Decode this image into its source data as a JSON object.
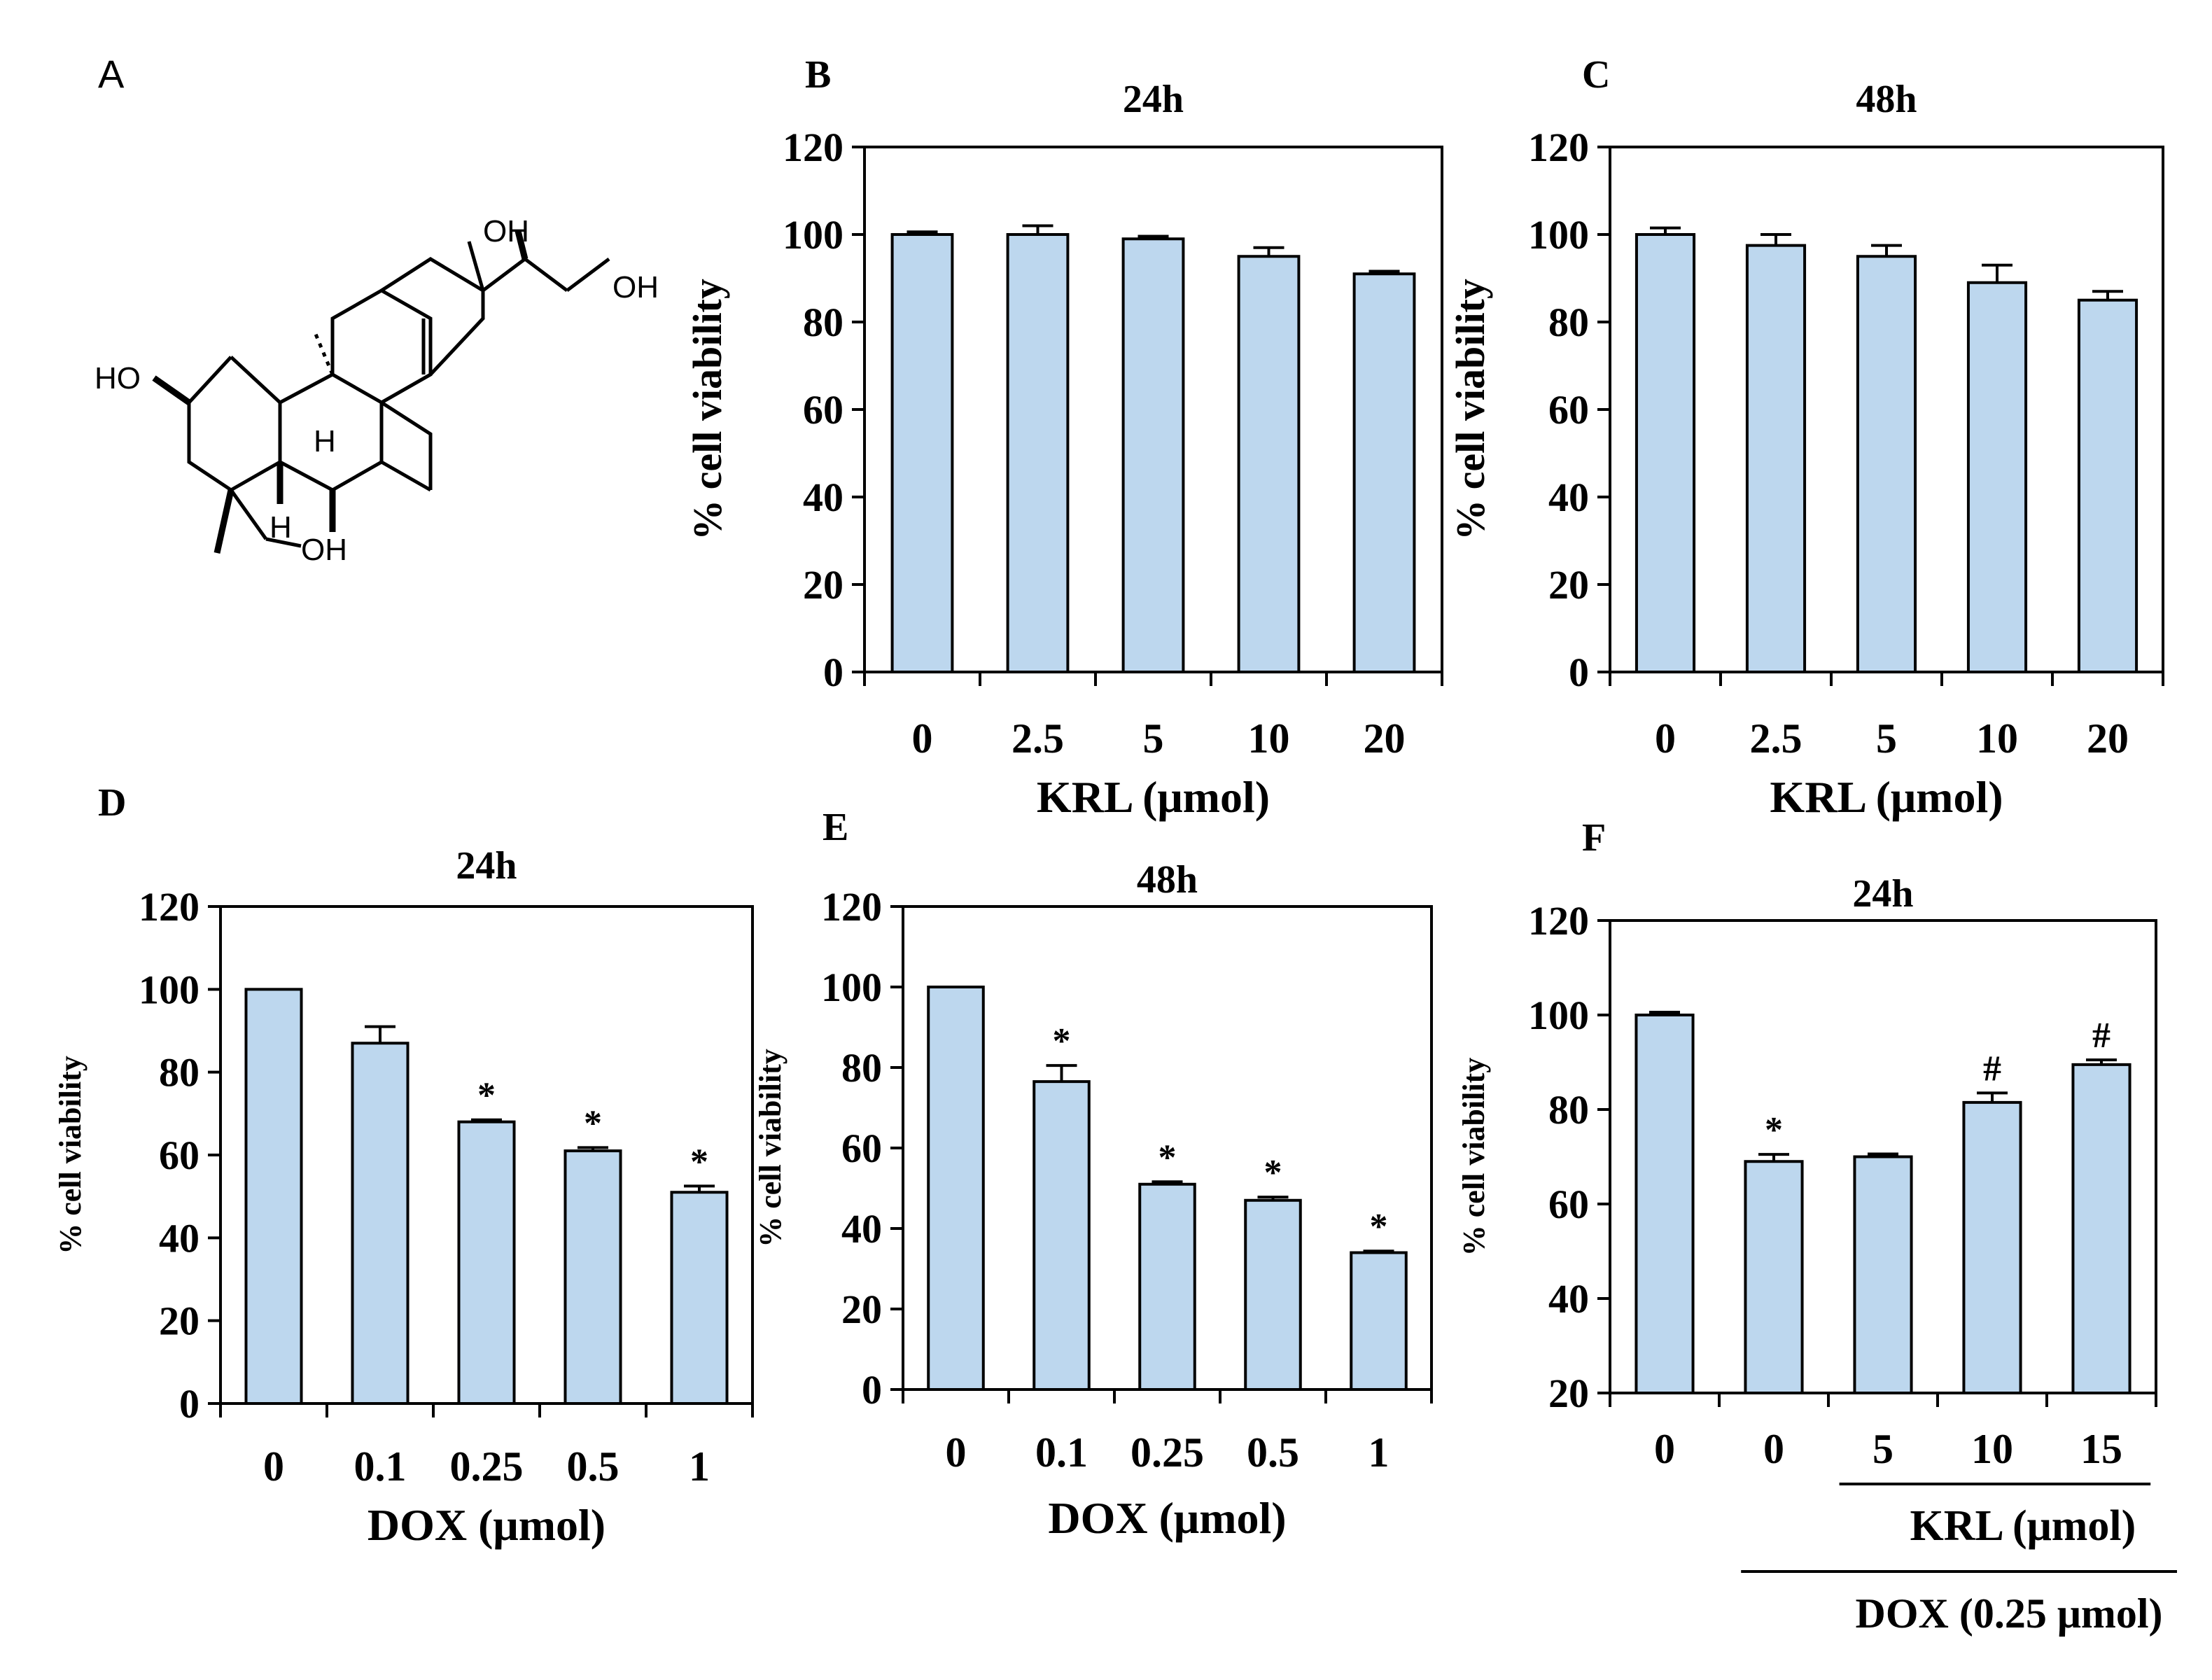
{
  "colors": {
    "bar_fill": "#bdd7ee",
    "bar_stroke": "#000000",
    "axis": "#000000"
  },
  "structure": {
    "panel_letter": "A",
    "labels": {
      "oh_top": "OH",
      "oh_right": "OH",
      "ho_left": "HO",
      "h_center": "H",
      "h_lower": "H",
      "oh_bottom": "OH"
    }
  },
  "chart_data": [
    {
      "panel": "B",
      "type": "bar",
      "title": "24h",
      "ylabel": "% cell viability",
      "xlabel": "KRL (μmol)",
      "ylim": [
        0,
        120
      ],
      "yticks": [
        0,
        20,
        40,
        60,
        80,
        100,
        120
      ],
      "categories": [
        "0",
        "2.5",
        "5",
        "10",
        "20"
      ],
      "values": [
        100,
        100,
        99,
        95,
        91
      ],
      "errors": [
        0.6,
        2,
        0.6,
        2,
        0.6
      ],
      "annotations": [
        "",
        "",
        "",
        "",
        ""
      ],
      "grid": false,
      "legend": "none"
    },
    {
      "panel": "C",
      "type": "bar",
      "title": "48h",
      "ylabel": "% cell viability",
      "xlabel": "KRL (μmol)",
      "ylim": [
        0,
        120
      ],
      "yticks": [
        0,
        20,
        40,
        60,
        80,
        100,
        120
      ],
      "categories": [
        "0",
        "2.5",
        "5",
        "10",
        "20"
      ],
      "values": [
        100,
        97.5,
        95,
        89,
        85
      ],
      "errors": [
        1.5,
        2.5,
        2.5,
        4,
        2
      ],
      "annotations": [
        "",
        "",
        "",
        "",
        ""
      ],
      "grid": false,
      "legend": "none"
    },
    {
      "panel": "D",
      "type": "bar",
      "title": "24h",
      "ylabel": "% cell viability",
      "xlabel": "DOX (μmol)",
      "ylim": [
        0,
        120
      ],
      "yticks": [
        0,
        20,
        40,
        60,
        80,
        100,
        120
      ],
      "categories": [
        "0",
        "0.1",
        "0.25",
        "0.5",
        "1"
      ],
      "values": [
        100,
        87,
        68,
        61,
        51
      ],
      "errors": [
        0,
        4,
        0.5,
        0.8,
        1.5
      ],
      "annotations": [
        "",
        "",
        "*",
        "*",
        "*"
      ],
      "grid": false,
      "legend": "none"
    },
    {
      "panel": "E",
      "type": "bar",
      "title": "48h",
      "ylabel": "% cell viability",
      "xlabel": "DOX (μmol)",
      "ylim": [
        0,
        120
      ],
      "yticks": [
        0,
        20,
        40,
        60,
        80,
        100,
        120
      ],
      "categories": [
        "0",
        "0.1",
        "0.25",
        "0.5",
        "1"
      ],
      "values": [
        100,
        76.5,
        51,
        47,
        34
      ],
      "errors": [
        0,
        4,
        0.6,
        0.8,
        0.4
      ],
      "annotations": [
        "",
        "*",
        "*",
        "*",
        "*"
      ],
      "grid": false,
      "legend": "none"
    },
    {
      "panel": "F",
      "type": "bar",
      "title": "24h",
      "ylabel": "% cell viability",
      "xlabel": "KRL (μmol)",
      "xlabel2": "DOX (0.25 μmol)",
      "ylim": [
        20,
        120
      ],
      "yticks": [
        20,
        40,
        60,
        80,
        100,
        120
      ],
      "categories": [
        "0",
        "0",
        "5",
        "10",
        "15"
      ],
      "values": [
        100,
        69,
        70,
        81.5,
        89.5
      ],
      "errors": [
        0.6,
        1.5,
        0.6,
        2,
        1
      ],
      "annotations": [
        "",
        "*",
        "",
        "#",
        "#"
      ],
      "grid": false,
      "legend": "none"
    }
  ]
}
